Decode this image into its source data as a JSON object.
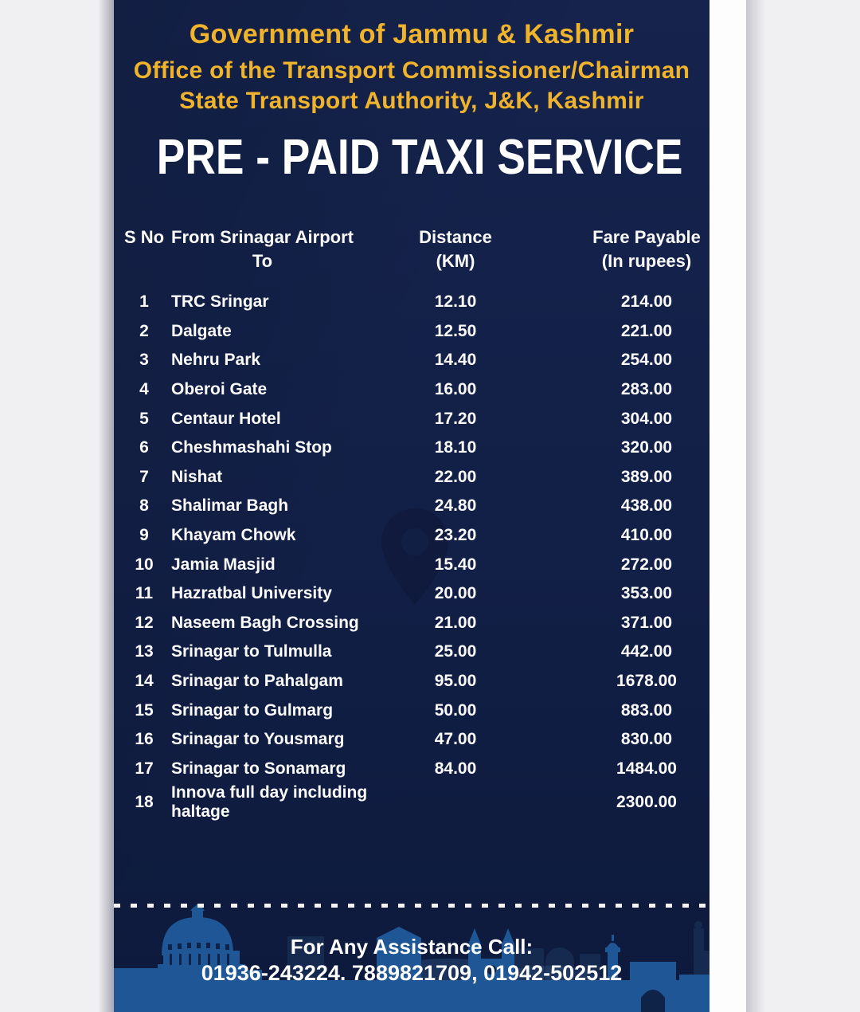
{
  "page": {
    "background_color": "#F0EFF1"
  },
  "poster": {
    "colors": {
      "navy_background": "#121F46",
      "gold_accent": "#F0B32C",
      "title_white": "#FFFFFF",
      "skyline_blue": "#1F5796",
      "skyline_dark": "#16294E"
    },
    "header": {
      "org_line1": "Government of Jammu & Kashmir",
      "org_line2": "Office of the Transport Commissioner/Chairman",
      "org_line3": "State Transport Authority, J&K, Kashmir",
      "title": "PRE - PAID TAXI SERVICE"
    },
    "table": {
      "headers": {
        "serial": "S No",
        "from_line1": "From Srinagar Airport",
        "from_line2": "To",
        "distance_line1": "Distance",
        "distance_line2": "(KM)",
        "fare_line1": "Fare Payable",
        "fare_line2": "(In rupees)"
      },
      "rows": [
        {
          "sno": "1",
          "destination": "TRC Sringar",
          "distance": "12.10",
          "fare": "214.00"
        },
        {
          "sno": "2",
          "destination": "Dalgate",
          "distance": "12.50",
          "fare": "221.00"
        },
        {
          "sno": "3",
          "destination": "Nehru Park",
          "distance": "14.40",
          "fare": "254.00"
        },
        {
          "sno": "4",
          "destination": "Oberoi Gate",
          "distance": "16.00",
          "fare": "283.00"
        },
        {
          "sno": "5",
          "destination": "Centaur Hotel",
          "distance": "17.20",
          "fare": "304.00"
        },
        {
          "sno": "6",
          "destination": "Cheshmashahi Stop",
          "distance": "18.10",
          "fare": "320.00"
        },
        {
          "sno": "7",
          "destination": "Nishat",
          "distance": "22.00",
          "fare": "389.00"
        },
        {
          "sno": "8",
          "destination": "Shalimar Bagh",
          "distance": "24.80",
          "fare": "438.00"
        },
        {
          "sno": "9",
          "destination": "Khayam Chowk",
          "distance": "23.20",
          "fare": "410.00"
        },
        {
          "sno": "10",
          "destination": "Jamia Masjid",
          "distance": "15.40",
          "fare": "272.00"
        },
        {
          "sno": "11",
          "destination": "Hazratbal University",
          "distance": "20.00",
          "fare": "353.00"
        },
        {
          "sno": "12",
          "destination": "Naseem Bagh Crossing",
          "distance": "21.00",
          "fare": "371.00"
        },
        {
          "sno": "13",
          "destination": "Srinagar to Tulmulla",
          "distance": "25.00",
          "fare": "442.00"
        },
        {
          "sno": "14",
          "destination": "Srinagar to Pahalgam",
          "distance": "95.00",
          "fare": "1678.00"
        },
        {
          "sno": "15",
          "destination": "Srinagar to Gulmarg",
          "distance": "50.00",
          "fare": "883.00"
        },
        {
          "sno": "16",
          "destination": "Srinagar to Yousmarg",
          "distance": "47.00",
          "fare": "830.00"
        },
        {
          "sno": "17",
          "destination": "Srinagar to Sonamarg",
          "distance": "84.00",
          "fare": "1484.00"
        },
        {
          "sno": "18",
          "destination": "Innova full day including haltage",
          "distance": "",
          "fare": "2300.00"
        }
      ]
    },
    "footer": {
      "assistance_label": "For Any Assistance Call:",
      "phone_numbers": "01936-243224. 7889821709, 01942-502512"
    }
  }
}
